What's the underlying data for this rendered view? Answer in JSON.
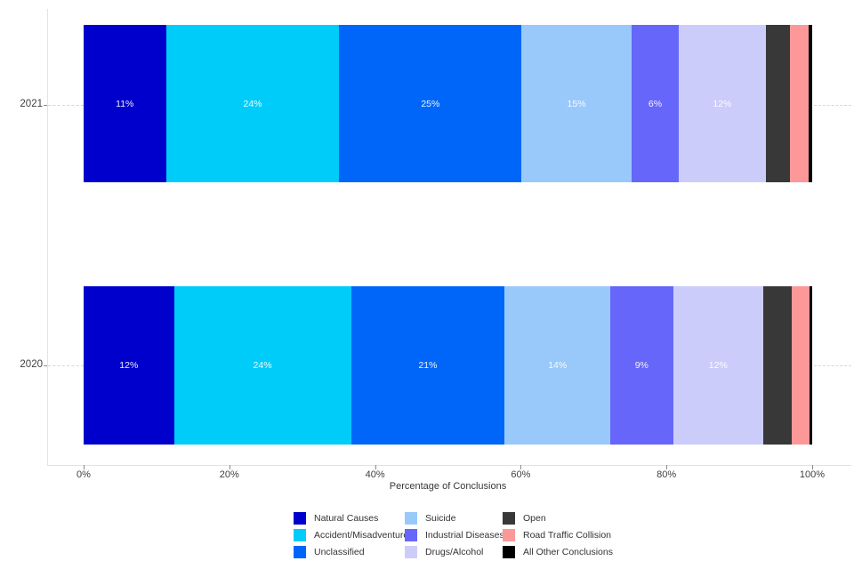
{
  "chart_data": {
    "type": "bar",
    "orientation": "horizontal",
    "stacked": true,
    "title": "",
    "xlabel": "Percentage of Conclusions",
    "xlim": [
      0,
      100
    ],
    "grid": "dashed-horizontal-stubs",
    "legend_position": "bottom",
    "categories": [
      "2021",
      "2020"
    ],
    "x_ticks": [
      {
        "value": 0,
        "label": "0%"
      },
      {
        "value": 20,
        "label": "20%"
      },
      {
        "value": 40,
        "label": "40%"
      },
      {
        "value": 60,
        "label": "60%"
      },
      {
        "value": 80,
        "label": "80%"
      },
      {
        "value": 100,
        "label": "100%"
      }
    ],
    "series": [
      {
        "name": "Natural Causes",
        "color": "#0000cc",
        "values": [
          11.3,
          12.4
        ],
        "labels": [
          "11%",
          "12%"
        ]
      },
      {
        "name": "Accident/Misadventure",
        "color": "#00ccfa",
        "values": [
          23.8,
          24.3
        ],
        "labels": [
          "24%",
          "24%"
        ]
      },
      {
        "name": "Unclassified",
        "color": "#0066fa",
        "values": [
          25.0,
          21.1
        ],
        "labels": [
          "25%",
          "21%"
        ]
      },
      {
        "name": "Suicide",
        "color": "#99c9fa",
        "values": [
          15.1,
          14.5
        ],
        "labels": [
          "15%",
          "14%"
        ]
      },
      {
        "name": "Industrial Diseases",
        "color": "#6666fa",
        "values": [
          6.5,
          8.6
        ],
        "labels": [
          "6%",
          "9%"
        ]
      },
      {
        "name": "Drugs/Alcohol",
        "color": "#ccccfa",
        "values": [
          11.9,
          12.4
        ],
        "labels": [
          "12%",
          "12%"
        ]
      },
      {
        "name": "Open",
        "color": "#383838",
        "values": [
          3.3,
          3.9
        ],
        "labels": [
          "",
          ""
        ]
      },
      {
        "name": "Road Traffic Collision",
        "color": "#fc9898",
        "values": [
          2.6,
          2.4
        ],
        "labels": [
          "",
          ""
        ]
      },
      {
        "name": "All Other Conclusions",
        "color": "#000000",
        "values": [
          0.5,
          0.4
        ],
        "labels": [
          "",
          ""
        ]
      }
    ]
  },
  "colors": {
    "background": "#ffffff",
    "axis_line": "#e3e3e3",
    "grid_dash": "#d6d6d6",
    "tick_mark": "#8a8a8a",
    "axis_text": "#404040",
    "bar_label_text": "#ffffff"
  }
}
